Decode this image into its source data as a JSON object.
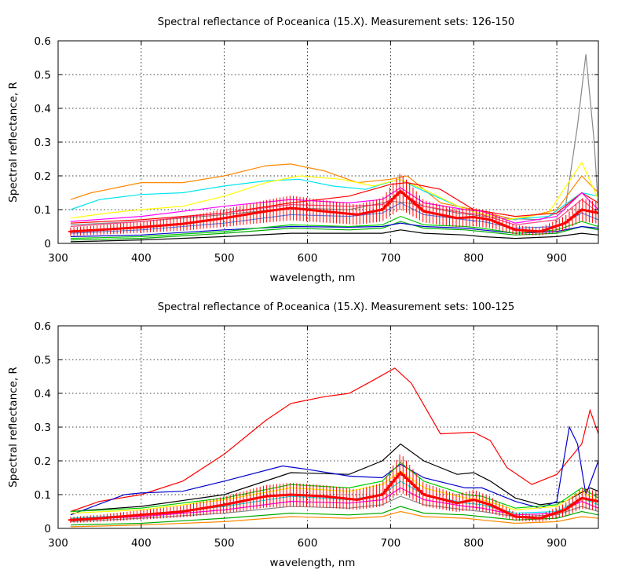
{
  "chart_data": [
    {
      "type": "line",
      "title": "Spectral reflectance of P.oceanica (15.X). Measurement sets: 126-150",
      "xlabel": "wavelength, nm",
      "ylabel": "Spectral reflectance, R",
      "xlim": [
        300,
        950
      ],
      "ylim": [
        0,
        0.6
      ],
      "xticks": [
        300,
        400,
        500,
        600,
        700,
        800,
        900
      ],
      "yticks": [
        0,
        0.1,
        0.2,
        0.3,
        0.4,
        0.5,
        0.6
      ],
      "grid": true,
      "series": [
        {
          "color": "#888888",
          "x": [
            315,
            400,
            500,
            580,
            650,
            700,
            720,
            780,
            830,
            880,
            910,
            925,
            935,
            945,
            950
          ],
          "y": [
            0.055,
            0.065,
            0.085,
            0.105,
            0.1,
            0.125,
            0.12,
            0.09,
            0.075,
            0.07,
            0.1,
            0.35,
            0.56,
            0.3,
            0.1
          ]
        },
        {
          "color": "#ff8800",
          "x": [
            315,
            340,
            400,
            450,
            500,
            550,
            580,
            620,
            660,
            700,
            720,
            760,
            800,
            850,
            900,
            930,
            950
          ],
          "y": [
            0.13,
            0.15,
            0.18,
            0.18,
            0.2,
            0.23,
            0.235,
            0.215,
            0.18,
            0.19,
            0.2,
            0.12,
            0.1,
            0.07,
            0.1,
            0.2,
            0.15
          ]
        },
        {
          "color": "#00e5ee",
          "x": [
            315,
            350,
            400,
            450,
            500,
            550,
            590,
            630,
            670,
            710,
            740,
            790,
            840,
            890,
            930,
            950
          ],
          "y": [
            0.1,
            0.13,
            0.145,
            0.15,
            0.17,
            0.185,
            0.19,
            0.17,
            0.16,
            0.19,
            0.155,
            0.1,
            0.07,
            0.08,
            0.15,
            0.14
          ]
        },
        {
          "color": "#ffff00",
          "x": [
            315,
            360,
            400,
            450,
            500,
            550,
            590,
            640,
            680,
            710,
            740,
            790,
            840,
            890,
            930,
            950
          ],
          "y": [
            0.075,
            0.09,
            0.1,
            0.11,
            0.14,
            0.18,
            0.2,
            0.19,
            0.17,
            0.19,
            0.16,
            0.1,
            0.07,
            0.09,
            0.24,
            0.13
          ]
        },
        {
          "color": "#ff0000",
          "x": [
            315,
            400,
            500,
            580,
            650,
            700,
            720,
            760,
            800,
            850,
            900,
            930,
            950
          ],
          "y": [
            0.06,
            0.07,
            0.09,
            0.12,
            0.14,
            0.175,
            0.18,
            0.16,
            0.1,
            0.08,
            0.09,
            0.15,
            0.12
          ]
        },
        {
          "color": "#ff00ff",
          "x": [
            315,
            400,
            500,
            580,
            650,
            690,
            712,
            740,
            790,
            810,
            850,
            900,
            930,
            950
          ],
          "y": [
            0.065,
            0.08,
            0.11,
            0.13,
            0.12,
            0.13,
            0.165,
            0.12,
            0.1,
            0.095,
            0.06,
            0.08,
            0.15,
            0.1
          ]
        },
        {
          "color": "#ff4488",
          "x": [
            315,
            400,
            500,
            580,
            650,
            690,
            712,
            740,
            790,
            810,
            850,
            900,
            930,
            950
          ],
          "y": [
            0.05,
            0.065,
            0.09,
            0.115,
            0.11,
            0.115,
            0.15,
            0.11,
            0.09,
            0.085,
            0.055,
            0.07,
            0.13,
            0.09
          ]
        },
        {
          "color": "#4488ff",
          "x": [
            315,
            400,
            500,
            580,
            650,
            690,
            712,
            740,
            790,
            810,
            850,
            900,
            930,
            950
          ],
          "y": [
            0.03,
            0.04,
            0.06,
            0.085,
            0.08,
            0.09,
            0.12,
            0.085,
            0.07,
            0.065,
            0.045,
            0.05,
            0.09,
            0.07
          ]
        },
        {
          "color": "#00aa00",
          "x": [
            315,
            400,
            500,
            580,
            650,
            690,
            712,
            740,
            790,
            810,
            850,
            900,
            930,
            950
          ],
          "y": [
            0.01,
            0.015,
            0.03,
            0.045,
            0.04,
            0.045,
            0.065,
            0.045,
            0.04,
            0.035,
            0.025,
            0.03,
            0.05,
            0.04
          ]
        },
        {
          "color": "#0000cc",
          "x": [
            315,
            400,
            500,
            580,
            650,
            690,
            712,
            740,
            790,
            810,
            850,
            900,
            930,
            950
          ],
          "y": [
            0.02,
            0.025,
            0.04,
            0.05,
            0.048,
            0.05,
            0.06,
            0.05,
            0.045,
            0.04,
            0.03,
            0.035,
            0.05,
            0.045
          ]
        },
        {
          "color": "#000000",
          "x": [
            315,
            400,
            500,
            580,
            650,
            690,
            712,
            740,
            790,
            810,
            850,
            900,
            930,
            950
          ],
          "y": [
            0.005,
            0.01,
            0.02,
            0.03,
            0.03,
            0.03,
            0.04,
            0.03,
            0.025,
            0.02,
            0.015,
            0.02,
            0.03,
            0.025
          ]
        },
        {
          "color": "#00cc00",
          "x": [
            315,
            400,
            500,
            580,
            650,
            690,
            712,
            740,
            790,
            810,
            850,
            900,
            930,
            950
          ],
          "y": [
            0.015,
            0.02,
            0.035,
            0.055,
            0.05,
            0.055,
            0.08,
            0.055,
            0.05,
            0.045,
            0.03,
            0.04,
            0.065,
            0.05
          ]
        }
      ],
      "mean": {
        "color": "#ff0000",
        "x": [
          315,
          350,
          400,
          450,
          500,
          550,
          580,
          620,
          660,
          690,
          712,
          740,
          780,
          800,
          820,
          850,
          880,
          910,
          930,
          950
        ],
        "y": [
          0.035,
          0.04,
          0.048,
          0.058,
          0.075,
          0.095,
          0.105,
          0.095,
          0.085,
          0.1,
          0.155,
          0.095,
          0.075,
          0.078,
          0.07,
          0.04,
          0.035,
          0.06,
          0.1,
          0.09
        ]
      }
    },
    {
      "type": "line",
      "title": "Spectral reflectance of P.oceanica (15.X). Measurement sets: 100-125",
      "xlabel": "wavelength, nm",
      "ylabel": "Spectral reflectance, R",
      "xlim": [
        300,
        950
      ],
      "ylim": [
        0,
        0.6
      ],
      "xticks": [
        300,
        400,
        500,
        600,
        700,
        800,
        900
      ],
      "yticks": [
        0,
        0.1,
        0.2,
        0.3,
        0.4,
        0.5,
        0.6
      ],
      "grid": true,
      "series": [
        {
          "color": "#ff0000",
          "x": [
            315,
            350,
            400,
            450,
            500,
            550,
            580,
            620,
            650,
            680,
            705,
            725,
            760,
            800,
            820,
            840,
            870,
            900,
            930,
            940,
            950
          ],
          "y": [
            0.05,
            0.08,
            0.1,
            0.14,
            0.22,
            0.32,
            0.37,
            0.39,
            0.4,
            0.44,
            0.475,
            0.43,
            0.28,
            0.285,
            0.26,
            0.18,
            0.13,
            0.16,
            0.25,
            0.35,
            0.28
          ]
        },
        {
          "color": "#000000",
          "x": [
            315,
            400,
            500,
            580,
            650,
            690,
            712,
            740,
            780,
            800,
            820,
            850,
            880,
            910,
            940,
            950
          ],
          "y": [
            0.05,
            0.065,
            0.1,
            0.165,
            0.16,
            0.2,
            0.25,
            0.2,
            0.16,
            0.165,
            0.14,
            0.09,
            0.07,
            0.08,
            0.12,
            0.11
          ]
        },
        {
          "color": "#0000cc",
          "x": [
            315,
            380,
            400,
            450,
            500,
            570,
            600,
            650,
            690,
            712,
            740,
            790,
            810,
            850,
            880,
            900,
            915,
            925,
            935,
            950
          ],
          "y": [
            0.04,
            0.1,
            0.105,
            0.11,
            0.14,
            0.185,
            0.175,
            0.155,
            0.15,
            0.19,
            0.15,
            0.12,
            0.12,
            0.08,
            0.06,
            0.08,
            0.3,
            0.25,
            0.1,
            0.2
          ]
        },
        {
          "color": "#00cc00",
          "x": [
            315,
            400,
            500,
            580,
            650,
            690,
            712,
            740,
            790,
            810,
            850,
            900,
            930,
            950
          ],
          "y": [
            0.05,
            0.06,
            0.09,
            0.13,
            0.12,
            0.14,
            0.195,
            0.14,
            0.1,
            0.095,
            0.06,
            0.07,
            0.12,
            0.09
          ]
        },
        {
          "color": "#ffff00",
          "x": [
            315,
            400,
            500,
            580,
            650,
            690,
            712,
            740,
            790,
            810,
            850,
            900,
            930,
            950
          ],
          "y": [
            0.045,
            0.055,
            0.085,
            0.12,
            0.11,
            0.13,
            0.17,
            0.12,
            0.09,
            0.085,
            0.055,
            0.065,
            0.11,
            0.08
          ]
        },
        {
          "color": "#00e5ee",
          "x": [
            315,
            400,
            500,
            580,
            650,
            690,
            712,
            740,
            790,
            810,
            850,
            900,
            930,
            950
          ],
          "y": [
            0.03,
            0.04,
            0.065,
            0.095,
            0.085,
            0.1,
            0.14,
            0.1,
            0.075,
            0.07,
            0.045,
            0.05,
            0.09,
            0.07
          ]
        },
        {
          "color": "#ff00ff",
          "x": [
            315,
            400,
            500,
            580,
            650,
            690,
            712,
            740,
            790,
            810,
            850,
            900,
            930,
            950
          ],
          "y": [
            0.025,
            0.035,
            0.055,
            0.08,
            0.075,
            0.085,
            0.12,
            0.085,
            0.065,
            0.06,
            0.04,
            0.045,
            0.08,
            0.06
          ]
        },
        {
          "color": "#888888",
          "x": [
            315,
            400,
            500,
            580,
            650,
            690,
            712,
            740,
            790,
            810,
            850,
            900,
            930,
            950
          ],
          "y": [
            0.02,
            0.03,
            0.045,
            0.065,
            0.06,
            0.07,
            0.095,
            0.07,
            0.055,
            0.05,
            0.035,
            0.04,
            0.065,
            0.05
          ]
        },
        {
          "color": "#ff8800",
          "x": [
            315,
            400,
            500,
            580,
            650,
            690,
            712,
            740,
            790,
            810,
            850,
            900,
            930,
            950
          ],
          "y": [
            0.005,
            0.01,
            0.02,
            0.035,
            0.03,
            0.035,
            0.05,
            0.035,
            0.03,
            0.025,
            0.015,
            0.02,
            0.035,
            0.03
          ]
        },
        {
          "color": "#00aa00",
          "x": [
            315,
            400,
            500,
            580,
            650,
            690,
            712,
            740,
            790,
            810,
            850,
            900,
            930,
            950
          ],
          "y": [
            0.01,
            0.015,
            0.03,
            0.045,
            0.04,
            0.045,
            0.065,
            0.045,
            0.04,
            0.035,
            0.025,
            0.03,
            0.05,
            0.04
          ]
        }
      ],
      "mean": {
        "color": "#ff0000",
        "x": [
          315,
          350,
          400,
          450,
          500,
          550,
          580,
          620,
          660,
          690,
          712,
          740,
          780,
          800,
          820,
          850,
          880,
          910,
          930,
          950
        ],
        "y": [
          0.025,
          0.03,
          0.04,
          0.05,
          0.07,
          0.095,
          0.1,
          0.095,
          0.085,
          0.1,
          0.165,
          0.1,
          0.075,
          0.085,
          0.07,
          0.035,
          0.03,
          0.055,
          0.09,
          0.08
        ]
      }
    }
  ]
}
